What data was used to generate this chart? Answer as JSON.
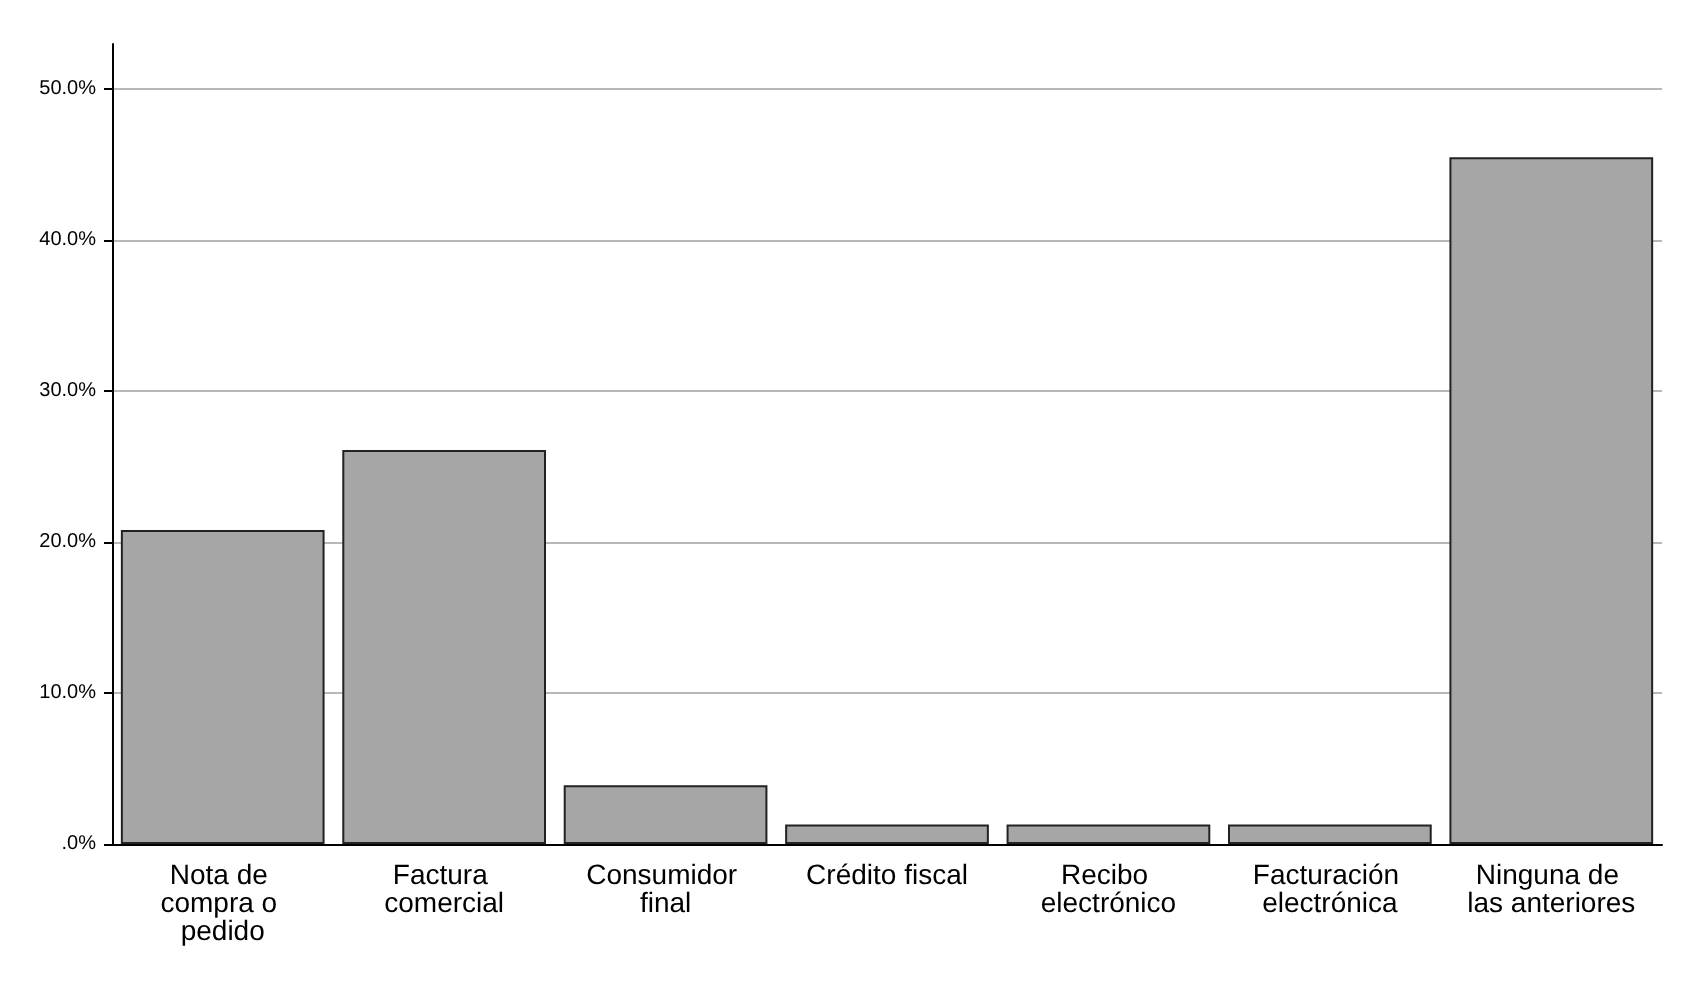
{
  "chart_data": {
    "type": "bar",
    "categories": [
      "Nota de compra o pedido",
      "Factura comercial",
      "Consumidor final",
      "Crédito fiscal",
      "Recibo electrónico",
      "Facturación electrónica",
      "Ninguna de las anteriores"
    ],
    "values": [
      20.8,
      26.1,
      3.9,
      1.3,
      1.3,
      1.3,
      45.5
    ],
    "color": "#a6a6a6",
    "ylim": [
      0,
      53
    ],
    "yticks": [
      {
        "value": 0,
        "label": ".0%"
      },
      {
        "value": 10,
        "label": "10.0%"
      },
      {
        "value": 20,
        "label": "20.0%"
      },
      {
        "value": 30,
        "label": "30.0%"
      },
      {
        "value": 40,
        "label": "40.0%"
      },
      {
        "value": 50,
        "label": "50.0%"
      }
    ],
    "grid": "y"
  }
}
